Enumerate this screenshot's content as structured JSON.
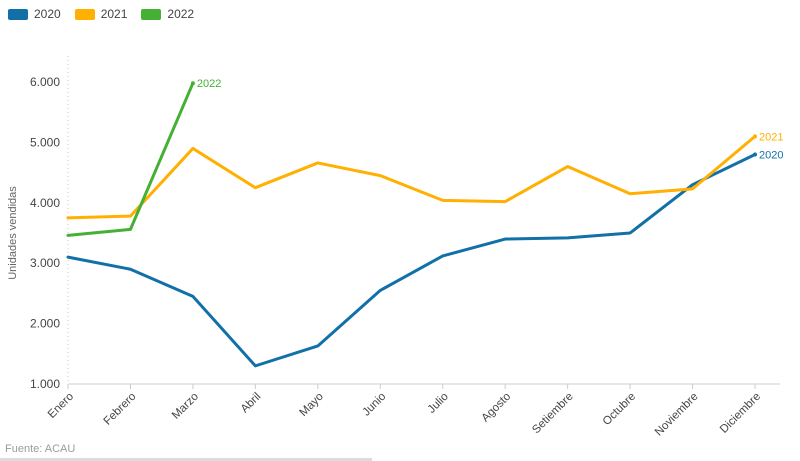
{
  "legend": {
    "items": [
      {
        "label": "2020",
        "color": "#1270a8"
      },
      {
        "label": "2021",
        "color": "#ffb000"
      },
      {
        "label": "2022",
        "color": "#45b035"
      }
    ]
  },
  "chart_data": {
    "type": "line",
    "title": "",
    "x": [
      "Enero",
      "Febrero",
      "Marzo",
      "Abril",
      "Mayo",
      "Junio",
      "Julio",
      "Agosto",
      "Setiembre",
      "Octubre",
      "Noviembre",
      "Diciembre"
    ],
    "xlabel": "",
    "ylabel": "Unidades vendidas",
    "ylim": [
      1000,
      6000
    ],
    "yticks": [
      {
        "value": 1000,
        "label": "1.000"
      },
      {
        "value": 2000,
        "label": "2.000"
      },
      {
        "value": 3000,
        "label": "3.000"
      },
      {
        "value": 4000,
        "label": "4.000"
      },
      {
        "value": 5000,
        "label": "5.000"
      },
      {
        "value": 6000,
        "label": "6.000"
      }
    ],
    "grid": "off",
    "legend_position": "top-left",
    "series": [
      {
        "name": "2020",
        "color": "#1270a8",
        "end_label": "2020",
        "values": [
          3100,
          2900,
          2450,
          1300,
          1630,
          2550,
          3120,
          3400,
          3420,
          3500,
          4300,
          4800
        ]
      },
      {
        "name": "2021",
        "color": "#ffb000",
        "end_label": "2021",
        "values": [
          3750,
          3780,
          4900,
          4250,
          4660,
          4450,
          4040,
          4020,
          4600,
          4150,
          4230,
          5100
        ]
      },
      {
        "name": "2022",
        "color": "#45b035",
        "end_label": "2022",
        "values": [
          3460,
          3560,
          5980
        ]
      }
    ]
  },
  "footer": {
    "source": "Fuente: ACAU"
  },
  "colors": {
    "axis_line": "#cccccc",
    "tick_text": "#454545",
    "axis_title_text": "#666666",
    "source_text": "#9b9b9b"
  }
}
